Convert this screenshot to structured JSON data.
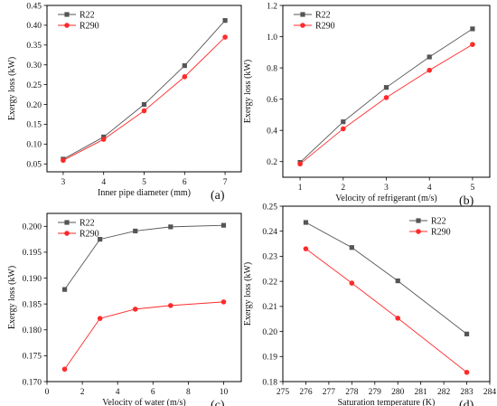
{
  "colors": {
    "r22": "#555555",
    "r290": "#ff2a2a",
    "axis": "#000000"
  },
  "chart_data": [
    {
      "type": "line",
      "panel_label": "(a)",
      "xlabel": "Inner pipe diameter (mm)",
      "ylabel": "Exergy loss (kW)",
      "x": [
        3,
        4,
        5,
        6,
        7
      ],
      "xlim": [
        2.6,
        7.4
      ],
      "ylim": [
        0.03,
        0.45
      ],
      "xticks": [
        3,
        4,
        5,
        6,
        7
      ],
      "yticks": [
        0.05,
        0.1,
        0.15,
        0.2,
        0.25,
        0.3,
        0.35,
        0.4,
        0.45
      ],
      "xtick_labels": [
        "3",
        "4",
        "5",
        "6",
        "7"
      ],
      "ytick_labels": [
        "0.05",
        "0.10",
        "0.15",
        "0.20",
        "0.25",
        "0.30",
        "0.35",
        "0.40",
        "0.45"
      ],
      "legend": "top-left",
      "series": [
        {
          "name": "R22",
          "marker": "square",
          "values": [
            0.062,
            0.118,
            0.2,
            0.298,
            0.412
          ]
        },
        {
          "name": "R290",
          "marker": "circle",
          "values": [
            0.059,
            0.112,
            0.184,
            0.27,
            0.37
          ]
        }
      ]
    },
    {
      "type": "line",
      "panel_label": "(b)",
      "xlabel": "Velocity of refrigerant (m/s)",
      "ylabel": "Exergy loss (kW)",
      "x": [
        1,
        2,
        3,
        4,
        5
      ],
      "xlim": [
        0.6,
        5.4
      ],
      "ylim": [
        0.1,
        1.2
      ],
      "xticks": [
        1,
        2,
        3,
        4,
        5
      ],
      "yticks": [
        0.2,
        0.4,
        0.6,
        0.8,
        1.0,
        1.2
      ],
      "xtick_labels": [
        "1",
        "2",
        "3",
        "4",
        "5"
      ],
      "ytick_labels": [
        "0.2",
        "0.4",
        "0.6",
        "0.8",
        "1.0",
        "1.2"
      ],
      "legend": "top-left",
      "series": [
        {
          "name": "R22",
          "marker": "square",
          "values": [
            0.195,
            0.455,
            0.675,
            0.87,
            1.05
          ]
        },
        {
          "name": "R290",
          "marker": "circle",
          "values": [
            0.185,
            0.41,
            0.61,
            0.785,
            0.95
          ]
        }
      ]
    },
    {
      "type": "line",
      "panel_label": "(c)",
      "xlabel": "Velocity of water (m/s)",
      "ylabel": "Exergy loss (kW)",
      "x": [
        1,
        3,
        5,
        7,
        10
      ],
      "xlim": [
        0,
        11
      ],
      "ylim": [
        0.17,
        0.2025
      ],
      "xticks": [
        0,
        2,
        4,
        6,
        8,
        10
      ],
      "yticks": [
        0.17,
        0.175,
        0.18,
        0.185,
        0.19,
        0.195,
        0.2
      ],
      "xtick_labels": [
        "0",
        "2",
        "4",
        "6",
        "8",
        "10"
      ],
      "ytick_labels": [
        "0.170",
        "0.175",
        "0.180",
        "0.185",
        "0.190",
        "0.195",
        "0.200"
      ],
      "legend": "top-left",
      "series": [
        {
          "name": "R22",
          "marker": "square",
          "values": [
            0.1878,
            0.1975,
            0.1991,
            0.1999,
            0.2002
          ]
        },
        {
          "name": "R290",
          "marker": "circle",
          "values": [
            0.1724,
            0.1822,
            0.184,
            0.1847,
            0.1854
          ]
        }
      ]
    },
    {
      "type": "line",
      "panel_label": "(d)",
      "xlabel": "Saturation temperature (K)",
      "ylabel": "Exergy loss (kW)",
      "x": [
        276,
        278,
        280,
        283
      ],
      "xlim": [
        275,
        284
      ],
      "ylim": [
        0.18,
        0.25
      ],
      "xticks": [
        275,
        276,
        277,
        278,
        279,
        280,
        281,
        282,
        283,
        284
      ],
      "yticks": [
        0.18,
        0.19,
        0.2,
        0.21,
        0.22,
        0.23,
        0.24,
        0.25
      ],
      "xtick_labels": [
        "275",
        "276",
        "277",
        "278",
        "279",
        "280",
        "281",
        "282",
        "283",
        "284"
      ],
      "ytick_labels": [
        "0.18",
        "0.19",
        "0.20",
        "0.21",
        "0.22",
        "0.23",
        "0.24",
        "0.25"
      ],
      "legend": "top-right",
      "series": [
        {
          "name": "R22",
          "marker": "square",
          "values": [
            0.2435,
            0.2335,
            0.2202,
            0.199
          ]
        },
        {
          "name": "R290",
          "marker": "circle",
          "values": [
            0.233,
            0.2193,
            0.2053,
            0.1837
          ]
        }
      ]
    }
  ]
}
